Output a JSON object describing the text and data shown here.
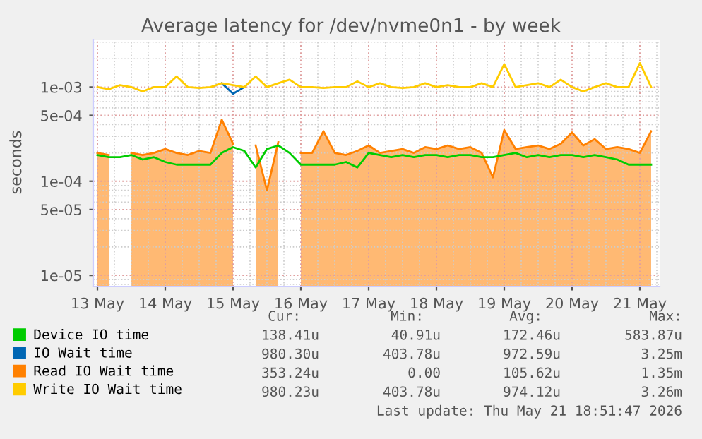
{
  "chart_data": {
    "type": "line",
    "title": "Average latency for /dev/nvme0n1 - by week",
    "ylabel": "seconds",
    "x": [
      "2026-05-13T00:00",
      "2026-05-13T04:00",
      "2026-05-13T08:00",
      "2026-05-13T12:00",
      "2026-05-13T16:00",
      "2026-05-13T20:00",
      "2026-05-14T00:00",
      "2026-05-14T04:00",
      "2026-05-14T08:00",
      "2026-05-14T12:00",
      "2026-05-14T16:00",
      "2026-05-14T20:00",
      "2026-05-15T00:00",
      "2026-05-15T04:00",
      "2026-05-15T08:00",
      "2026-05-15T12:00",
      "2026-05-15T16:00",
      "2026-05-15T20:00",
      "2026-05-16T00:00",
      "2026-05-16T04:00",
      "2026-05-16T08:00",
      "2026-05-16T12:00",
      "2026-05-16T16:00",
      "2026-05-16T20:00",
      "2026-05-17T00:00",
      "2026-05-17T04:00",
      "2026-05-17T08:00",
      "2026-05-17T12:00",
      "2026-05-17T16:00",
      "2026-05-17T20:00",
      "2026-05-18T00:00",
      "2026-05-18T04:00",
      "2026-05-18T08:00",
      "2026-05-18T12:00",
      "2026-05-18T16:00",
      "2026-05-18T20:00",
      "2026-05-19T00:00",
      "2026-05-19T04:00",
      "2026-05-19T08:00",
      "2026-05-19T12:00",
      "2026-05-19T16:00",
      "2026-05-19T20:00",
      "2026-05-20T00:00",
      "2026-05-20T04:00",
      "2026-05-20T08:00",
      "2026-05-20T12:00",
      "2026-05-20T16:00",
      "2026-05-20T20:00",
      "2026-05-21T00:00",
      "2026-05-21T04:00"
    ],
    "series": [
      {
        "name": "Device IO time",
        "color": "#00cc00",
        "values": [
          0.00019,
          0.00018,
          0.00018,
          0.00019,
          0.00017,
          0.00018,
          0.00016,
          0.00015,
          0.00015,
          0.00015,
          0.00015,
          0.0002,
          0.00023,
          0.00021,
          0.00014,
          0.00022,
          0.00024,
          0.0002,
          0.00015,
          0.00015,
          0.00015,
          0.00015,
          0.00016,
          0.00014,
          0.0002,
          0.00019,
          0.00018,
          0.00019,
          0.00018,
          0.00019,
          0.00019,
          0.00018,
          0.00019,
          0.00019,
          0.00018,
          0.00018,
          0.00019,
          0.0002,
          0.00018,
          0.00019,
          0.00018,
          0.00019,
          0.00019,
          0.00018,
          0.00019,
          0.00018,
          0.00017,
          0.00015,
          0.00015,
          0.00015
        ]
      },
      {
        "name": "IO Wait time",
        "color": "#0066b3",
        "values": [
          null,
          null,
          null,
          null,
          null,
          null,
          null,
          null,
          null,
          null,
          null,
          0.0011,
          0.00085,
          0.001,
          null,
          null,
          null,
          null,
          null,
          null,
          null,
          null,
          null,
          null,
          null,
          null,
          null,
          null,
          null,
          null,
          null,
          null,
          null,
          null,
          null,
          null,
          null,
          null,
          null,
          null,
          null,
          null,
          null,
          null,
          null,
          null,
          null,
          null,
          null,
          null
        ]
      },
      {
        "name": "Read IO Wait time",
        "color": "#ff8000",
        "type": "area",
        "values": [
          0.0002,
          0.00019,
          null,
          0.0002,
          0.00019,
          0.0002,
          0.00022,
          0.0002,
          0.00019,
          0.00021,
          0.0002,
          0.00045,
          0.00025,
          null,
          0.00024,
          8e-05,
          0.00026,
          null,
          0.0002,
          0.0002,
          0.00034,
          0.0002,
          0.00019,
          0.00021,
          0.00024,
          0.0002,
          0.00021,
          0.00022,
          0.0002,
          0.00023,
          0.00022,
          0.00024,
          0.00022,
          0.00023,
          0.0002,
          0.00011,
          0.00035,
          0.00022,
          0.00023,
          0.00024,
          0.00022,
          0.00025,
          0.00033,
          0.00024,
          0.00028,
          0.00022,
          0.00023,
          0.00022,
          0.0002,
          0.00034
        ]
      },
      {
        "name": "Write IO Wait time",
        "color": "#ffcc00",
        "values": [
          0.001,
          0.00095,
          0.00105,
          0.001,
          0.0009,
          0.001,
          0.001,
          0.0013,
          0.001,
          0.00098,
          0.001,
          0.0011,
          0.00105,
          0.001,
          0.0013,
          0.001,
          0.0011,
          0.0012,
          0.001,
          0.001,
          0.00098,
          0.001,
          0.001,
          0.00115,
          0.001,
          0.0011,
          0.001,
          0.00098,
          0.001,
          0.0011,
          0.001,
          0.00105,
          0.001,
          0.001,
          0.0011,
          0.001,
          0.00175,
          0.001,
          0.00105,
          0.0011,
          0.001,
          0.0012,
          0.001,
          0.0009,
          0.001,
          0.0011,
          0.001,
          0.001,
          0.0018,
          0.001
        ]
      }
    ],
    "log": "y",
    "xlim": [
      "2026-05-12T22:30",
      "2026-05-21T07:00"
    ],
    "ylim": [
      7.6e-06,
      0.0032
    ],
    "xticks": [
      {
        "value": "2026-05-13",
        "label": "13 May"
      },
      {
        "value": "2026-05-14",
        "label": "14 May"
      },
      {
        "value": "2026-05-15",
        "label": "15 May"
      },
      {
        "value": "2026-05-16",
        "label": "16 May"
      },
      {
        "value": "2026-05-17",
        "label": "17 May"
      },
      {
        "value": "2026-05-18",
        "label": "18 May"
      },
      {
        "value": "2026-05-19",
        "label": "19 May"
      },
      {
        "value": "2026-05-20",
        "label": "20 May"
      },
      {
        "value": "2026-05-21",
        "label": "21 May"
      }
    ],
    "yticks": [
      {
        "value": 1e-05,
        "label": "1e-05"
      },
      {
        "value": 5e-05,
        "label": "5e-05"
      },
      {
        "value": 0.0001,
        "label": "1e-04"
      },
      {
        "value": 0.0005,
        "label": "5e-04"
      },
      {
        "value": 0.001,
        "label": "1e-03"
      }
    ],
    "grid": true,
    "legend": "bottom",
    "marker": "none",
    "line_style": "solid",
    "annotations": [
      "Cur:",
      "Min:",
      "Avg:",
      "Max:",
      "138.41u",
      "40.91u",
      "172.46u",
      "583.87u",
      "980.30u",
      "403.78u",
      "972.59u",
      "3.25m",
      "353.24u",
      "0.00",
      "105.62u",
      "1.35m",
      "980.23u",
      "403.78u",
      "974.12u",
      "3.26m",
      "Last update: Thu May 21 18:51:47 2026"
    ]
  }
}
